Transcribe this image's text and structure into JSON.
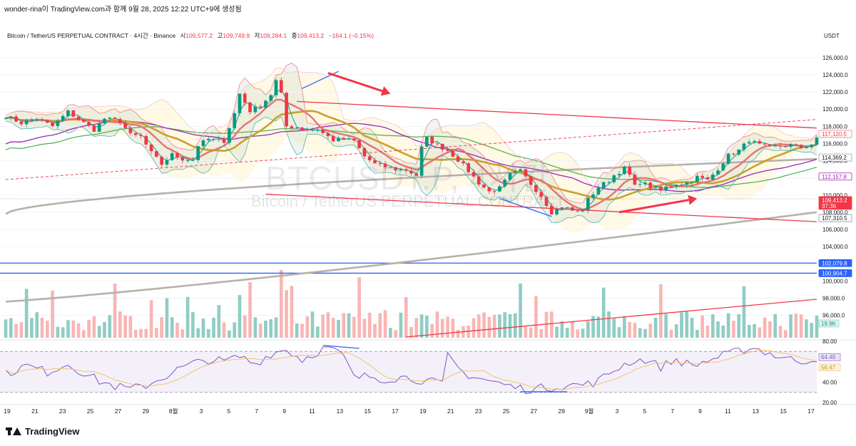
{
  "header": {
    "caption": "wonder-rina이 TradingView.com과 함께 9월 28, 2025 12:22 UTC+9에 생성됨",
    "symbol_line": "Bitcoin / TetherUS PERPETUAL CONTRACT · 4시간 · Binance",
    "ohlc": [
      {
        "label": "시",
        "value": "109,577.2"
      },
      {
        "label": "고",
        "value": "109,749.9"
      },
      {
        "label": "저",
        "value": "109,284.1"
      },
      {
        "label": "종",
        "value": "109,413.2"
      }
    ],
    "change": "−164.1 (−0.15%)",
    "currency": "USDT"
  },
  "watermark": {
    "ticker": "BTCUSDT.P, 4시간",
    "name": "Bitcoin / TetherUS PERPETUAL CONTRACT"
  },
  "brand": "TradingView",
  "colors": {
    "up": "#089981",
    "down": "#f23645",
    "price_badge": "#f23645",
    "level_line": "#2962ff",
    "rsi_line": "#7e57c2",
    "volume_up": "#7cc4ba",
    "volume_down": "#f7a9a7"
  },
  "chart_data": [
    {
      "type": "candlestick",
      "title": "",
      "timeframe": "4h",
      "x_ticks": [
        "19",
        "21",
        "23",
        "25",
        "27",
        "29",
        "8월",
        "3",
        "5",
        "7",
        "9",
        "11",
        "13",
        "15",
        "17",
        "19",
        "21",
        "23",
        "25",
        "27",
        "29",
        "9월",
        "3",
        "5",
        "7",
        "9",
        "11",
        "13",
        "15",
        "17"
      ],
      "y_ticks": [
        "126,000.0",
        "124,000.0",
        "122,000.0",
        "120,000.0",
        "118,000.0",
        "116,000.0",
        "114,000.0",
        "112,000.0",
        "110,000.0",
        "108,000.0",
        "106,000.0",
        "104,000.0",
        "102,000.0",
        "100,000.0",
        "98,000.0",
        "96,000.0"
      ],
      "ylim": [
        95300,
        127400
      ],
      "close_path": [
        [
          0,
          119200
        ],
        [
          3,
          118400
        ],
        [
          6,
          118900
        ],
        [
          9,
          118000
        ],
        [
          12,
          119700
        ],
        [
          15,
          118400
        ],
        [
          17,
          117600
        ],
        [
          19,
          118900
        ],
        [
          22,
          118600
        ],
        [
          24,
          117000
        ],
        [
          26,
          116800
        ],
        [
          28,
          114900
        ],
        [
          30,
          113600
        ],
        [
          32,
          114700
        ],
        [
          34,
          114200
        ],
        [
          36,
          114100
        ],
        [
          37,
          115800
        ],
        [
          39,
          116500
        ],
        [
          42,
          116300
        ],
        [
          44,
          119500
        ],
        [
          45,
          121800
        ],
        [
          47,
          119800
        ],
        [
          49,
          120400
        ],
        [
          51,
          121700
        ],
        [
          52,
          123300
        ],
        [
          53,
          121700
        ],
        [
          54,
          118000
        ],
        [
          56,
          117900
        ],
        [
          58,
          117600
        ],
        [
          60,
          117700
        ],
        [
          61,
          117200
        ],
        [
          63,
          116400
        ],
        [
          65,
          116500
        ],
        [
          67,
          116300
        ],
        [
          69,
          114500
        ],
        [
          71,
          113600
        ],
        [
          73,
          113300
        ],
        [
          75,
          113000
        ],
        [
          77,
          112900
        ],
        [
          79,
          112300
        ],
        [
          80,
          115500
        ],
        [
          81,
          116600
        ],
        [
          83,
          115800
        ],
        [
          85,
          115200
        ],
        [
          87,
          114100
        ],
        [
          89,
          112800
        ],
        [
          91,
          111400
        ],
        [
          93,
          110400
        ],
        [
          95,
          110800
        ],
        [
          97,
          112400
        ],
        [
          99,
          112800
        ],
        [
          101,
          111300
        ],
        [
          103,
          109900
        ],
        [
          105,
          108000
        ],
        [
          107,
          108700
        ],
        [
          109,
          108200
        ],
        [
          110,
          108000
        ],
        [
          111,
          108300
        ],
        [
          112,
          109500
        ],
        [
          114,
          110900
        ],
        [
          116,
          111700
        ],
        [
          117,
          112300
        ],
        [
          119,
          113100
        ],
        [
          120,
          112300
        ],
        [
          121,
          111000
        ],
        [
          122,
          111500
        ],
        [
          124,
          111000
        ],
        [
          126,
          110500
        ],
        [
          127,
          110900
        ],
        [
          129,
          111300
        ],
        [
          131,
          111400
        ],
        [
          133,
          112100
        ],
        [
          135,
          111700
        ],
        [
          137,
          113100
        ],
        [
          139,
          114600
        ],
        [
          141,
          115200
        ],
        [
          143,
          116400
        ],
        [
          145,
          115800
        ],
        [
          147,
          115500
        ],
        [
          149,
          115700
        ],
        [
          151,
          115800
        ],
        [
          153,
          115500
        ],
        [
          155,
          115900
        ],
        [
          156,
          116500
        ]
      ],
      "price_labels": [
        {
          "name": "upper-band",
          "value": 117120.5,
          "text": "117,120.5"
        },
        {
          "name": "ma-green",
          "value": 114369.2,
          "text": "114,369.2"
        },
        {
          "name": "ma-purple",
          "value": 112157.8,
          "text": "112,157.8"
        },
        {
          "name": "last-price",
          "value": 109413.2,
          "text": "109,413.2",
          "countdown": "37:36"
        },
        {
          "name": "lower-band",
          "value": 107310.5,
          "text": "107,310.5"
        },
        {
          "name": "level-1",
          "value": 102079.8,
          "text": "102,079.8"
        },
        {
          "name": "level-2",
          "value": 100904.7,
          "text": "100,904.7"
        }
      ],
      "horizontal_levels": [
        102079.8,
        100904.7
      ],
      "annotations": {
        "trend_channel_upper": [
          [
            56,
            120900
          ],
          [
            156,
            117800
          ]
        ],
        "trend_channel_lower": [
          [
            50,
            110100
          ],
          [
            156,
            106900
          ]
        ],
        "dashed_trend": [
          [
            0,
            111800
          ],
          [
            156,
            118800
          ]
        ],
        "arrow_down": {
          "from": [
            62,
            124200
          ],
          "to": [
            74,
            121800
          ]
        },
        "arrow_up": {
          "from": [
            118,
            108000
          ],
          "to": [
            133,
            109600
          ]
        },
        "divergence_price_high": [
          [
            57,
            122400
          ],
          [
            64,
            124400
          ]
        ],
        "divergence_price_low": [
          [
            95,
            109600
          ],
          [
            105,
            107500
          ]
        ]
      },
      "volume_label": "19.9K"
    },
    {
      "type": "line",
      "title": "",
      "indicator": "RSI",
      "y_ticks": [
        "80.00",
        "40.00",
        "20.00"
      ],
      "ylim": [
        20,
        80
      ],
      "bands": [
        70,
        30
      ],
      "rsi_path": [
        [
          0,
          48
        ],
        [
          4,
          56
        ],
        [
          8,
          50
        ],
        [
          12,
          58
        ],
        [
          15,
          49
        ],
        [
          18,
          41
        ],
        [
          21,
          36
        ],
        [
          24,
          33
        ],
        [
          27,
          37
        ],
        [
          30,
          44
        ],
        [
          33,
          52
        ],
        [
          36,
          58
        ],
        [
          39,
          62
        ],
        [
          42,
          60
        ],
        [
          45,
          65
        ],
        [
          48,
          58
        ],
        [
          51,
          68
        ],
        [
          54,
          72
        ],
        [
          57,
          62
        ],
        [
          60,
          70
        ],
        [
          62,
          74
        ],
        [
          65,
          65
        ],
        [
          67,
          44
        ],
        [
          70,
          46
        ],
        [
          73,
          43
        ],
        [
          76,
          45
        ],
        [
          79,
          43
        ],
        [
          82,
          40
        ],
        [
          84,
          38
        ],
        [
          85,
          65
        ],
        [
          88,
          49
        ],
        [
          91,
          44
        ],
        [
          94,
          40
        ],
        [
          97,
          36
        ],
        [
          100,
          33
        ],
        [
          103,
          34
        ],
        [
          106,
          36
        ],
        [
          109,
          37
        ],
        [
          112,
          38
        ],
        [
          114,
          41
        ],
        [
          117,
          52
        ],
        [
          120,
          60
        ],
        [
          123,
          62
        ],
        [
          126,
          55
        ],
        [
          129,
          62
        ],
        [
          132,
          56
        ],
        [
          135,
          61
        ],
        [
          138,
          66
        ],
        [
          141,
          70
        ],
        [
          143,
          74
        ],
        [
          145,
          72
        ],
        [
          148,
          66
        ],
        [
          151,
          62
        ],
        [
          154,
          61
        ],
        [
          156,
          64
        ]
      ],
      "labels": [
        {
          "name": "rsi",
          "value": 64.49,
          "text": "64.49"
        },
        {
          "name": "rsi-ma",
          "value": 56.47,
          "text": "56.47"
        }
      ]
    }
  ]
}
